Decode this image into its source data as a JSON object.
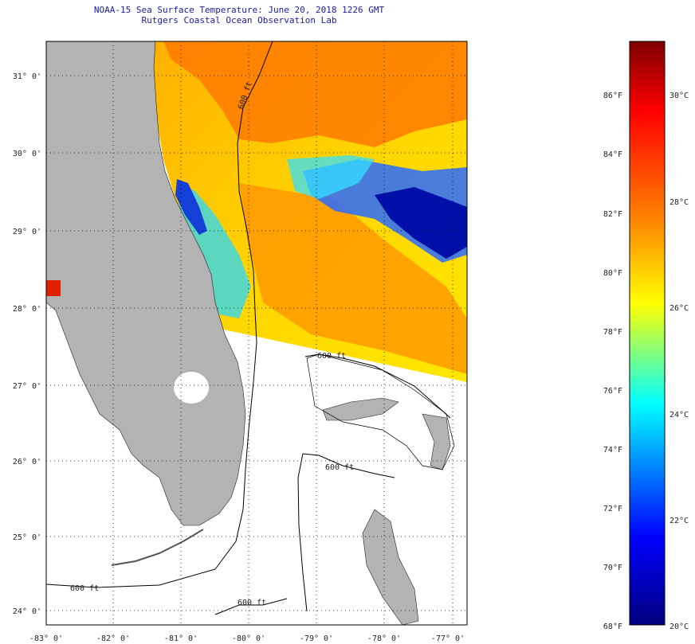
{
  "title": {
    "line1": "NOAA-15 Sea Surface Temperature:  June 20, 2018 1226 GMT",
    "line2": "Rutgers Coastal Ocean Observation Lab"
  },
  "map": {
    "lat_labels": [
      "31° 0'",
      "30° 0'",
      "29° 0'",
      "28° 0'",
      "27° 0'",
      "26° 0'",
      "25° 0'",
      "24° 0'"
    ],
    "lon_labels": [
      "-83° 0'",
      "-82° 0'",
      "-81° 0'",
      "-80° 0'",
      "-79° 0'",
      "-78° 0'",
      "-77° 0'"
    ],
    "contour_labels": [
      "600 ft",
      "600 ft",
      "600 ft",
      "600 ft",
      "600 ft"
    ],
    "colors": {
      "land": "#b3b3b3",
      "no_data": "#ffffff",
      "contour": "#000000"
    }
  },
  "colorbar": {
    "f_labels": [
      "86°F",
      "84°F",
      "82°F",
      "80°F",
      "78°F",
      "76°F",
      "74°F",
      "72°F",
      "70°F",
      "68°F"
    ],
    "c_labels": [
      "30°C",
      "28°C",
      "26°C",
      "24°C",
      "22°C",
      "20°C"
    ],
    "gradient": [
      "#7f0000",
      "#ff0000",
      "#ff8000",
      "#ffff00",
      "#00ffff",
      "#0000ff",
      "#00007f"
    ]
  }
}
